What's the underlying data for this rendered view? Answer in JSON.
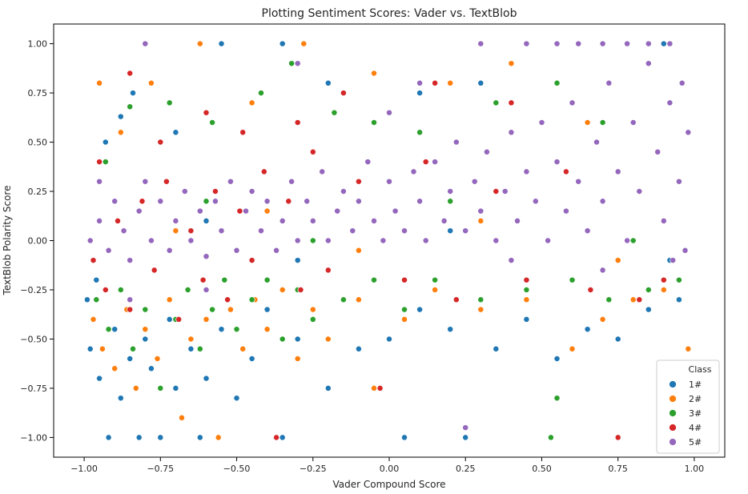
{
  "chart_data": {
    "type": "scatter",
    "title": "Plotting Sentiment Scores: Vader vs. TextBlob",
    "xlabel": "Vader Compound Score",
    "ylabel": "TextBlob Polarity Score",
    "xlim": [
      -1.1,
      1.1
    ],
    "ylim": [
      -1.1,
      1.1
    ],
    "x_ticks": [
      -1.0,
      -0.75,
      -0.5,
      -0.25,
      0.0,
      0.25,
      0.5,
      0.75,
      1.0
    ],
    "x_tick_labels": [
      "−1.00",
      "−0.75",
      "−0.50",
      "−0.25",
      "0.00",
      "0.25",
      "0.50",
      "0.75",
      "1.00"
    ],
    "y_ticks": [
      1.0,
      0.75,
      0.5,
      0.25,
      0.0,
      -0.25,
      -0.5,
      -0.75,
      -1.0
    ],
    "y_tick_labels": [
      "1.00",
      "0.75",
      "0.50",
      "0.25",
      "0.00",
      "−0.25",
      "−0.50",
      "−0.75",
      "−1.00"
    ],
    "grid": false,
    "legend": {
      "title": "Class",
      "placement": "bottom-right",
      "entries": [
        "1#",
        "2#",
        "3#",
        "4#",
        "5#"
      ]
    },
    "series": [
      {
        "name": "1#",
        "color": "#1f77b4",
        "points": [
          [
            -0.98,
            -0.55
          ],
          [
            -0.95,
            -0.7
          ],
          [
            -0.92,
            -1.0
          ],
          [
            -0.9,
            -0.45
          ],
          [
            -0.88,
            -0.8
          ],
          [
            -0.85,
            -0.6
          ],
          [
            -0.82,
            -1.0
          ],
          [
            -0.8,
            -0.5
          ],
          [
            -0.78,
            -0.65
          ],
          [
            -0.75,
            -1.0
          ],
          [
            -0.72,
            -0.4
          ],
          [
            -0.7,
            -0.75
          ],
          [
            -0.65,
            -0.55
          ],
          [
            -0.62,
            -1.0
          ],
          [
            -0.6,
            -0.7
          ],
          [
            -0.55,
            -0.45
          ],
          [
            -0.5,
            -0.8
          ],
          [
            -0.45,
            -0.6
          ],
          [
            -0.4,
            -0.35
          ],
          [
            -0.35,
            -1.0
          ],
          [
            -0.3,
            -0.5
          ],
          [
            -0.25,
            -0.4
          ],
          [
            -0.2,
            -0.75
          ],
          [
            -0.1,
            -0.55
          ],
          [
            0.0,
            -0.5
          ],
          [
            0.05,
            -1.0
          ],
          [
            0.1,
            -0.35
          ],
          [
            0.2,
            -0.45
          ],
          [
            0.25,
            -1.0
          ],
          [
            0.35,
            -0.55
          ],
          [
            0.45,
            -0.4
          ],
          [
            0.55,
            -0.6
          ],
          [
            0.65,
            -0.45
          ],
          [
            0.75,
            -0.5
          ],
          [
            0.85,
            -0.35
          ],
          [
            0.95,
            -0.3
          ],
          [
            -0.99,
            -0.3
          ],
          [
            -0.96,
            -0.2
          ],
          [
            -0.93,
            0.5
          ],
          [
            -0.88,
            0.63
          ],
          [
            -0.84,
            0.75
          ],
          [
            -0.7,
            0.55
          ],
          [
            -0.55,
            1.0
          ],
          [
            -0.35,
            1.0
          ],
          [
            -0.2,
            0.8
          ],
          [
            0.1,
            0.75
          ],
          [
            0.3,
            0.8
          ],
          [
            0.6,
            0.7
          ],
          [
            0.9,
            1.0
          ],
          [
            -0.6,
            0.1
          ],
          [
            -0.3,
            -0.1
          ],
          [
            0.2,
            0.05
          ],
          [
            0.6,
            -0.2
          ],
          [
            0.92,
            -0.1
          ]
        ]
      },
      {
        "name": "2#",
        "color": "#ff7f0e",
        "points": [
          [
            -0.97,
            -0.4
          ],
          [
            -0.94,
            -0.55
          ],
          [
            -0.9,
            -0.65
          ],
          [
            -0.86,
            -0.35
          ],
          [
            -0.83,
            -0.75
          ],
          [
            -0.8,
            -0.45
          ],
          [
            -0.76,
            -0.6
          ],
          [
            -0.72,
            -0.3
          ],
          [
            -0.68,
            -0.9
          ],
          [
            -0.65,
            -0.5
          ],
          [
            -0.6,
            -0.4
          ],
          [
            -0.56,
            -1.0
          ],
          [
            -0.52,
            -0.35
          ],
          [
            -0.48,
            -0.55
          ],
          [
            -0.44,
            -0.3
          ],
          [
            -0.4,
            -0.45
          ],
          [
            -0.35,
            -0.25
          ],
          [
            -0.3,
            -0.6
          ],
          [
            -0.25,
            -0.35
          ],
          [
            -0.2,
            -0.5
          ],
          [
            -0.1,
            -0.3
          ],
          [
            -0.05,
            -0.75
          ],
          [
            0.05,
            -0.4
          ],
          [
            0.15,
            -0.25
          ],
          [
            0.3,
            -0.35
          ],
          [
            0.45,
            -0.3
          ],
          [
            0.6,
            -0.55
          ],
          [
            0.7,
            -0.4
          ],
          [
            0.8,
            -0.3
          ],
          [
            0.9,
            -0.25
          ],
          [
            0.98,
            -0.55
          ],
          [
            -0.95,
            0.8
          ],
          [
            -0.88,
            0.55
          ],
          [
            -0.78,
            0.8
          ],
          [
            -0.62,
            1.0
          ],
          [
            -0.45,
            0.7
          ],
          [
            -0.28,
            1.0
          ],
          [
            -0.05,
            0.85
          ],
          [
            0.2,
            0.8
          ],
          [
            0.4,
            0.9
          ],
          [
            0.65,
            0.6
          ],
          [
            -0.7,
            0.05
          ],
          [
            -0.4,
            0.15
          ],
          [
            -0.1,
            -0.05
          ],
          [
            0.3,
            0.1
          ],
          [
            0.75,
            -0.1
          ]
        ]
      },
      {
        "name": "3#",
        "color": "#2ca02c",
        "points": [
          [
            -0.96,
            -0.3
          ],
          [
            -0.92,
            -0.45
          ],
          [
            -0.88,
            -0.25
          ],
          [
            -0.84,
            -0.55
          ],
          [
            -0.8,
            -0.35
          ],
          [
            -0.75,
            -0.75
          ],
          [
            -0.7,
            -0.4
          ],
          [
            -0.66,
            -0.25
          ],
          [
            -0.62,
            -0.55
          ],
          [
            -0.58,
            -0.35
          ],
          [
            -0.54,
            -0.2
          ],
          [
            -0.5,
            -0.45
          ],
          [
            -0.45,
            -0.3
          ],
          [
            -0.4,
            -0.2
          ],
          [
            -0.35,
            -0.5
          ],
          [
            -0.3,
            -0.25
          ],
          [
            -0.25,
            -0.4
          ],
          [
            -0.15,
            -0.3
          ],
          [
            -0.05,
            -0.2
          ],
          [
            0.05,
            -0.35
          ],
          [
            0.15,
            -0.2
          ],
          [
            0.3,
            -0.3
          ],
          [
            0.45,
            -0.25
          ],
          [
            0.55,
            -0.8
          ],
          [
            0.6,
            -0.2
          ],
          [
            0.72,
            -0.3
          ],
          [
            0.85,
            -0.25
          ],
          [
            0.95,
            -0.2
          ],
          [
            -0.93,
            0.4
          ],
          [
            -0.85,
            0.68
          ],
          [
            -0.72,
            0.7
          ],
          [
            -0.58,
            0.6
          ],
          [
            -0.42,
            0.75
          ],
          [
            -0.32,
            0.9
          ],
          [
            -0.18,
            0.65
          ],
          [
            -0.05,
            0.6
          ],
          [
            0.1,
            0.55
          ],
          [
            0.35,
            0.7
          ],
          [
            0.55,
            0.8
          ],
          [
            0.7,
            0.6
          ],
          [
            0.53,
            -1.0
          ],
          [
            -0.6,
            0.2
          ],
          [
            -0.25,
            0.0
          ],
          [
            0.2,
            0.2
          ],
          [
            0.8,
            0.0
          ]
        ]
      },
      {
        "name": "4#",
        "color": "#d62728",
        "points": [
          [
            -0.97,
            -0.1
          ],
          [
            -0.93,
            -0.25
          ],
          [
            -0.89,
            0.1
          ],
          [
            -0.85,
            -0.35
          ],
          [
            -0.81,
            0.2
          ],
          [
            -0.77,
            -0.15
          ],
          [
            -0.73,
            0.3
          ],
          [
            -0.69,
            -0.4
          ],
          [
            -0.65,
            0.05
          ],
          [
            -0.61,
            -0.2
          ],
          [
            -0.57,
            0.25
          ],
          [
            -0.53,
            -0.3
          ],
          [
            -0.49,
            0.15
          ],
          [
            -0.45,
            -0.1
          ],
          [
            -0.41,
            0.35
          ],
          [
            -0.37,
            -1.0
          ],
          [
            -0.33,
            0.2
          ],
          [
            -0.29,
            -0.25
          ],
          [
            -0.25,
            0.45
          ],
          [
            -0.2,
            -0.15
          ],
          [
            -0.1,
            0.3
          ],
          [
            -0.03,
            -0.75
          ],
          [
            0.05,
            -0.2
          ],
          [
            0.12,
            0.4
          ],
          [
            0.22,
            -0.3
          ],
          [
            0.35,
            0.25
          ],
          [
            0.45,
            -0.2
          ],
          [
            0.58,
            0.35
          ],
          [
            0.66,
            -0.25
          ],
          [
            0.75,
            -1.0
          ],
          [
            0.82,
            -0.3
          ],
          [
            0.9,
            -0.2
          ],
          [
            -0.95,
            0.4
          ],
          [
            -0.85,
            0.85
          ],
          [
            -0.75,
            0.5
          ],
          [
            -0.6,
            0.65
          ],
          [
            -0.48,
            0.55
          ],
          [
            -0.3,
            0.6
          ],
          [
            -0.15,
            0.75
          ],
          [
            0.15,
            0.8
          ],
          [
            0.4,
            0.7
          ]
        ]
      },
      {
        "name": "5#",
        "color": "#9467bd",
        "points": [
          [
            -0.98,
            0.0
          ],
          [
            -0.95,
            0.1
          ],
          [
            -0.92,
            -0.05
          ],
          [
            -0.9,
            0.2
          ],
          [
            -0.87,
            0.05
          ],
          [
            -0.85,
            -0.1
          ],
          [
            -0.82,
            0.15
          ],
          [
            -0.8,
            0.3
          ],
          [
            -0.78,
            0.0
          ],
          [
            -0.75,
            0.2
          ],
          [
            -0.72,
            -0.05
          ],
          [
            -0.7,
            0.1
          ],
          [
            -0.67,
            0.25
          ],
          [
            -0.65,
            0.0
          ],
          [
            -0.62,
            0.15
          ],
          [
            -0.6,
            -0.08
          ],
          [
            -0.57,
            0.2
          ],
          [
            -0.55,
            0.05
          ],
          [
            -0.52,
            0.3
          ],
          [
            -0.5,
            -0.05
          ],
          [
            -0.47,
            0.15
          ],
          [
            -0.45,
            0.25
          ],
          [
            -0.42,
            0.05
          ],
          [
            -0.4,
            0.2
          ],
          [
            -0.37,
            -0.05
          ],
          [
            -0.35,
            0.1
          ],
          [
            -0.32,
            0.3
          ],
          [
            -0.3,
            0.0
          ],
          [
            -0.27,
            0.2
          ],
          [
            -0.25,
            0.1
          ],
          [
            -0.22,
            0.35
          ],
          [
            -0.2,
            0.0
          ],
          [
            -0.17,
            0.15
          ],
          [
            -0.15,
            0.25
          ],
          [
            -0.12,
            0.05
          ],
          [
            -0.1,
            0.2
          ],
          [
            -0.07,
            0.4
          ],
          [
            -0.05,
            0.1
          ],
          [
            -0.02,
            0.0
          ],
          [
            0.0,
            0.3
          ],
          [
            0.02,
            0.15
          ],
          [
            0.05,
            0.05
          ],
          [
            0.08,
            0.35
          ],
          [
            0.1,
            0.2
          ],
          [
            0.12,
            0.0
          ],
          [
            0.15,
            0.4
          ],
          [
            0.18,
            0.1
          ],
          [
            0.2,
            0.25
          ],
          [
            0.22,
            0.5
          ],
          [
            0.25,
            0.05
          ],
          [
            0.28,
            0.3
          ],
          [
            0.3,
            0.15
          ],
          [
            0.32,
            0.45
          ],
          [
            0.35,
            0.0
          ],
          [
            0.38,
            0.25
          ],
          [
            0.4,
            0.55
          ],
          [
            0.42,
            0.1
          ],
          [
            0.45,
            0.35
          ],
          [
            0.48,
            0.2
          ],
          [
            0.5,
            0.6
          ],
          [
            0.52,
            0.0
          ],
          [
            0.55,
            0.4
          ],
          [
            0.58,
            0.15
          ],
          [
            0.6,
            0.7
          ],
          [
            0.62,
            0.3
          ],
          [
            0.65,
            0.05
          ],
          [
            0.68,
            0.5
          ],
          [
            0.7,
            0.2
          ],
          [
            0.72,
            0.8
          ],
          [
            0.75,
            0.35
          ],
          [
            0.78,
            0.0
          ],
          [
            0.8,
            0.6
          ],
          [
            0.82,
            0.25
          ],
          [
            0.85,
            0.9
          ],
          [
            0.88,
            0.45
          ],
          [
            0.9,
            0.1
          ],
          [
            0.92,
            0.7
          ],
          [
            0.95,
            0.3
          ],
          [
            0.97,
            -0.05
          ],
          [
            0.98,
            0.55
          ],
          [
            -0.8,
            1.0
          ],
          [
            -0.3,
            0.9
          ],
          [
            0.0,
            0.65
          ],
          [
            0.1,
            0.8
          ],
          [
            0.3,
            1.0
          ],
          [
            0.45,
            1.0
          ],
          [
            0.55,
            1.0
          ],
          [
            0.62,
            1.0
          ],
          [
            0.7,
            1.0
          ],
          [
            0.78,
            1.0
          ],
          [
            0.85,
            1.0
          ],
          [
            0.92,
            1.0
          ],
          [
            0.96,
            0.8
          ],
          [
            0.4,
            -0.1
          ],
          [
            0.7,
            -0.15
          ],
          [
            0.93,
            -0.1
          ],
          [
            0.25,
            -0.95
          ],
          [
            -0.6,
            -0.25
          ],
          [
            -0.85,
            -0.3
          ],
          [
            -0.95,
            0.3
          ]
        ]
      }
    ]
  }
}
